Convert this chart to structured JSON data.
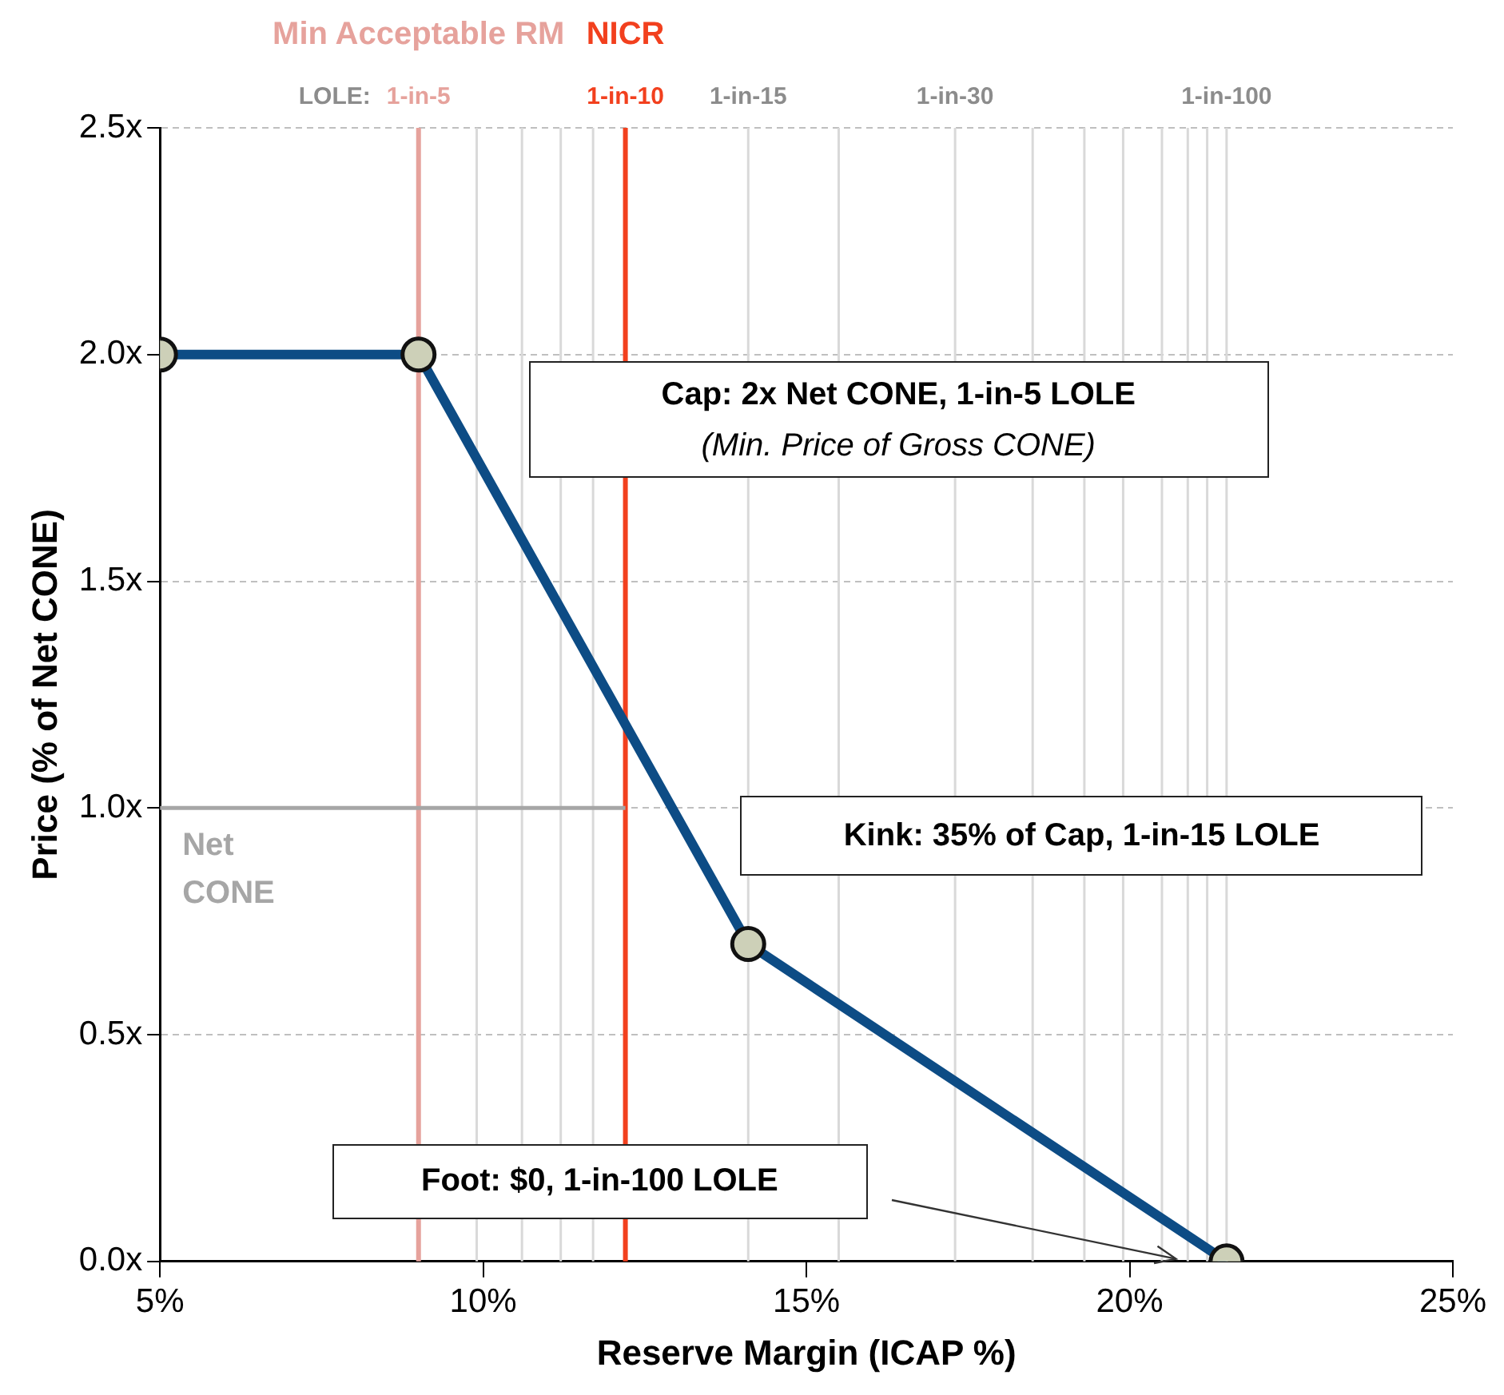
{
  "chart_data": {
    "type": "line",
    "xlabel": "Reserve Margin (ICAP %)",
    "ylabel": "Price (% of Net CONE)",
    "xlim": [
      5,
      25
    ],
    "xticks": [
      {
        "value": 5,
        "label": "5%"
      },
      {
        "value": 10,
        "label": "10%"
      },
      {
        "value": 15,
        "label": "15%"
      },
      {
        "value": 20,
        "label": "20%"
      },
      {
        "value": 25,
        "label": "25%"
      }
    ],
    "ylim": [
      0,
      2.5
    ],
    "yticks": [
      {
        "value": 0,
        "label": "0.0x"
      },
      {
        "value": 0.5,
        "label": "0.5x"
      },
      {
        "value": 1,
        "label": "1.0x"
      },
      {
        "value": 1.5,
        "label": "1.5x"
      },
      {
        "value": 2,
        "label": "2.0x"
      },
      {
        "value": 2.5,
        "label": "2.5x"
      }
    ],
    "grid": "y",
    "legend": false,
    "ref_lines": [
      {
        "axis": "x",
        "value": 9.9,
        "color": "#d9d9d9"
      },
      {
        "axis": "x",
        "value": 10.6,
        "color": "#d9d9d9"
      },
      {
        "axis": "x",
        "value": 11.2,
        "color": "#d9d9d9"
      },
      {
        "axis": "x",
        "value": 11.7,
        "color": "#d9d9d9"
      },
      {
        "axis": "x",
        "value": 14.1,
        "label": "1-in-15",
        "color": "#d9d9d9"
      },
      {
        "axis": "x",
        "value": 15.5,
        "color": "#d9d9d9"
      },
      {
        "axis": "x",
        "value": 17.3,
        "label": "1-in-30",
        "color": "#d9d9d9"
      },
      {
        "axis": "x",
        "value": 18.5,
        "color": "#d9d9d9"
      },
      {
        "axis": "x",
        "value": 19.3,
        "color": "#d9d9d9"
      },
      {
        "axis": "x",
        "value": 19.9,
        "color": "#d9d9d9"
      },
      {
        "axis": "x",
        "value": 20.5,
        "color": "#d9d9d9"
      },
      {
        "axis": "x",
        "value": 20.9,
        "color": "#d9d9d9"
      },
      {
        "axis": "x",
        "value": 21.2,
        "color": "#d9d9d9"
      },
      {
        "axis": "x",
        "value": 21.5,
        "label": "1-in-100",
        "color": "#d9d9d9"
      },
      {
        "axis": "x",
        "value": 9.0,
        "label": "Min Acceptable RM",
        "color": "#e6a29c"
      },
      {
        "axis": "x",
        "value": 12.2,
        "label": "NICR",
        "color": "#f2401e"
      }
    ],
    "series": [
      {
        "color": "#0d4c85",
        "x": [
          5,
          9.0,
          14.1,
          21.5
        ],
        "values": [
          2,
          2,
          0.7,
          0
        ],
        "marker": "circle"
      },
      {
        "name": "Net CONE",
        "color": "#a6a6a6",
        "x": [
          5,
          12.2
        ],
        "values": [
          1,
          1
        ],
        "marker": "none"
      }
    ],
    "annotations": [
      "LOLE:",
      "1-in-5",
      "1-in-10",
      "Cap: 2x Net CONE, 1-in-5 LOLE",
      "(Min. Price of Gross CONE)",
      "Kink: 35% of Cap, 1-in-15 LOLE",
      "Foot: $0, 1-in-100 LOLE"
    ]
  }
}
